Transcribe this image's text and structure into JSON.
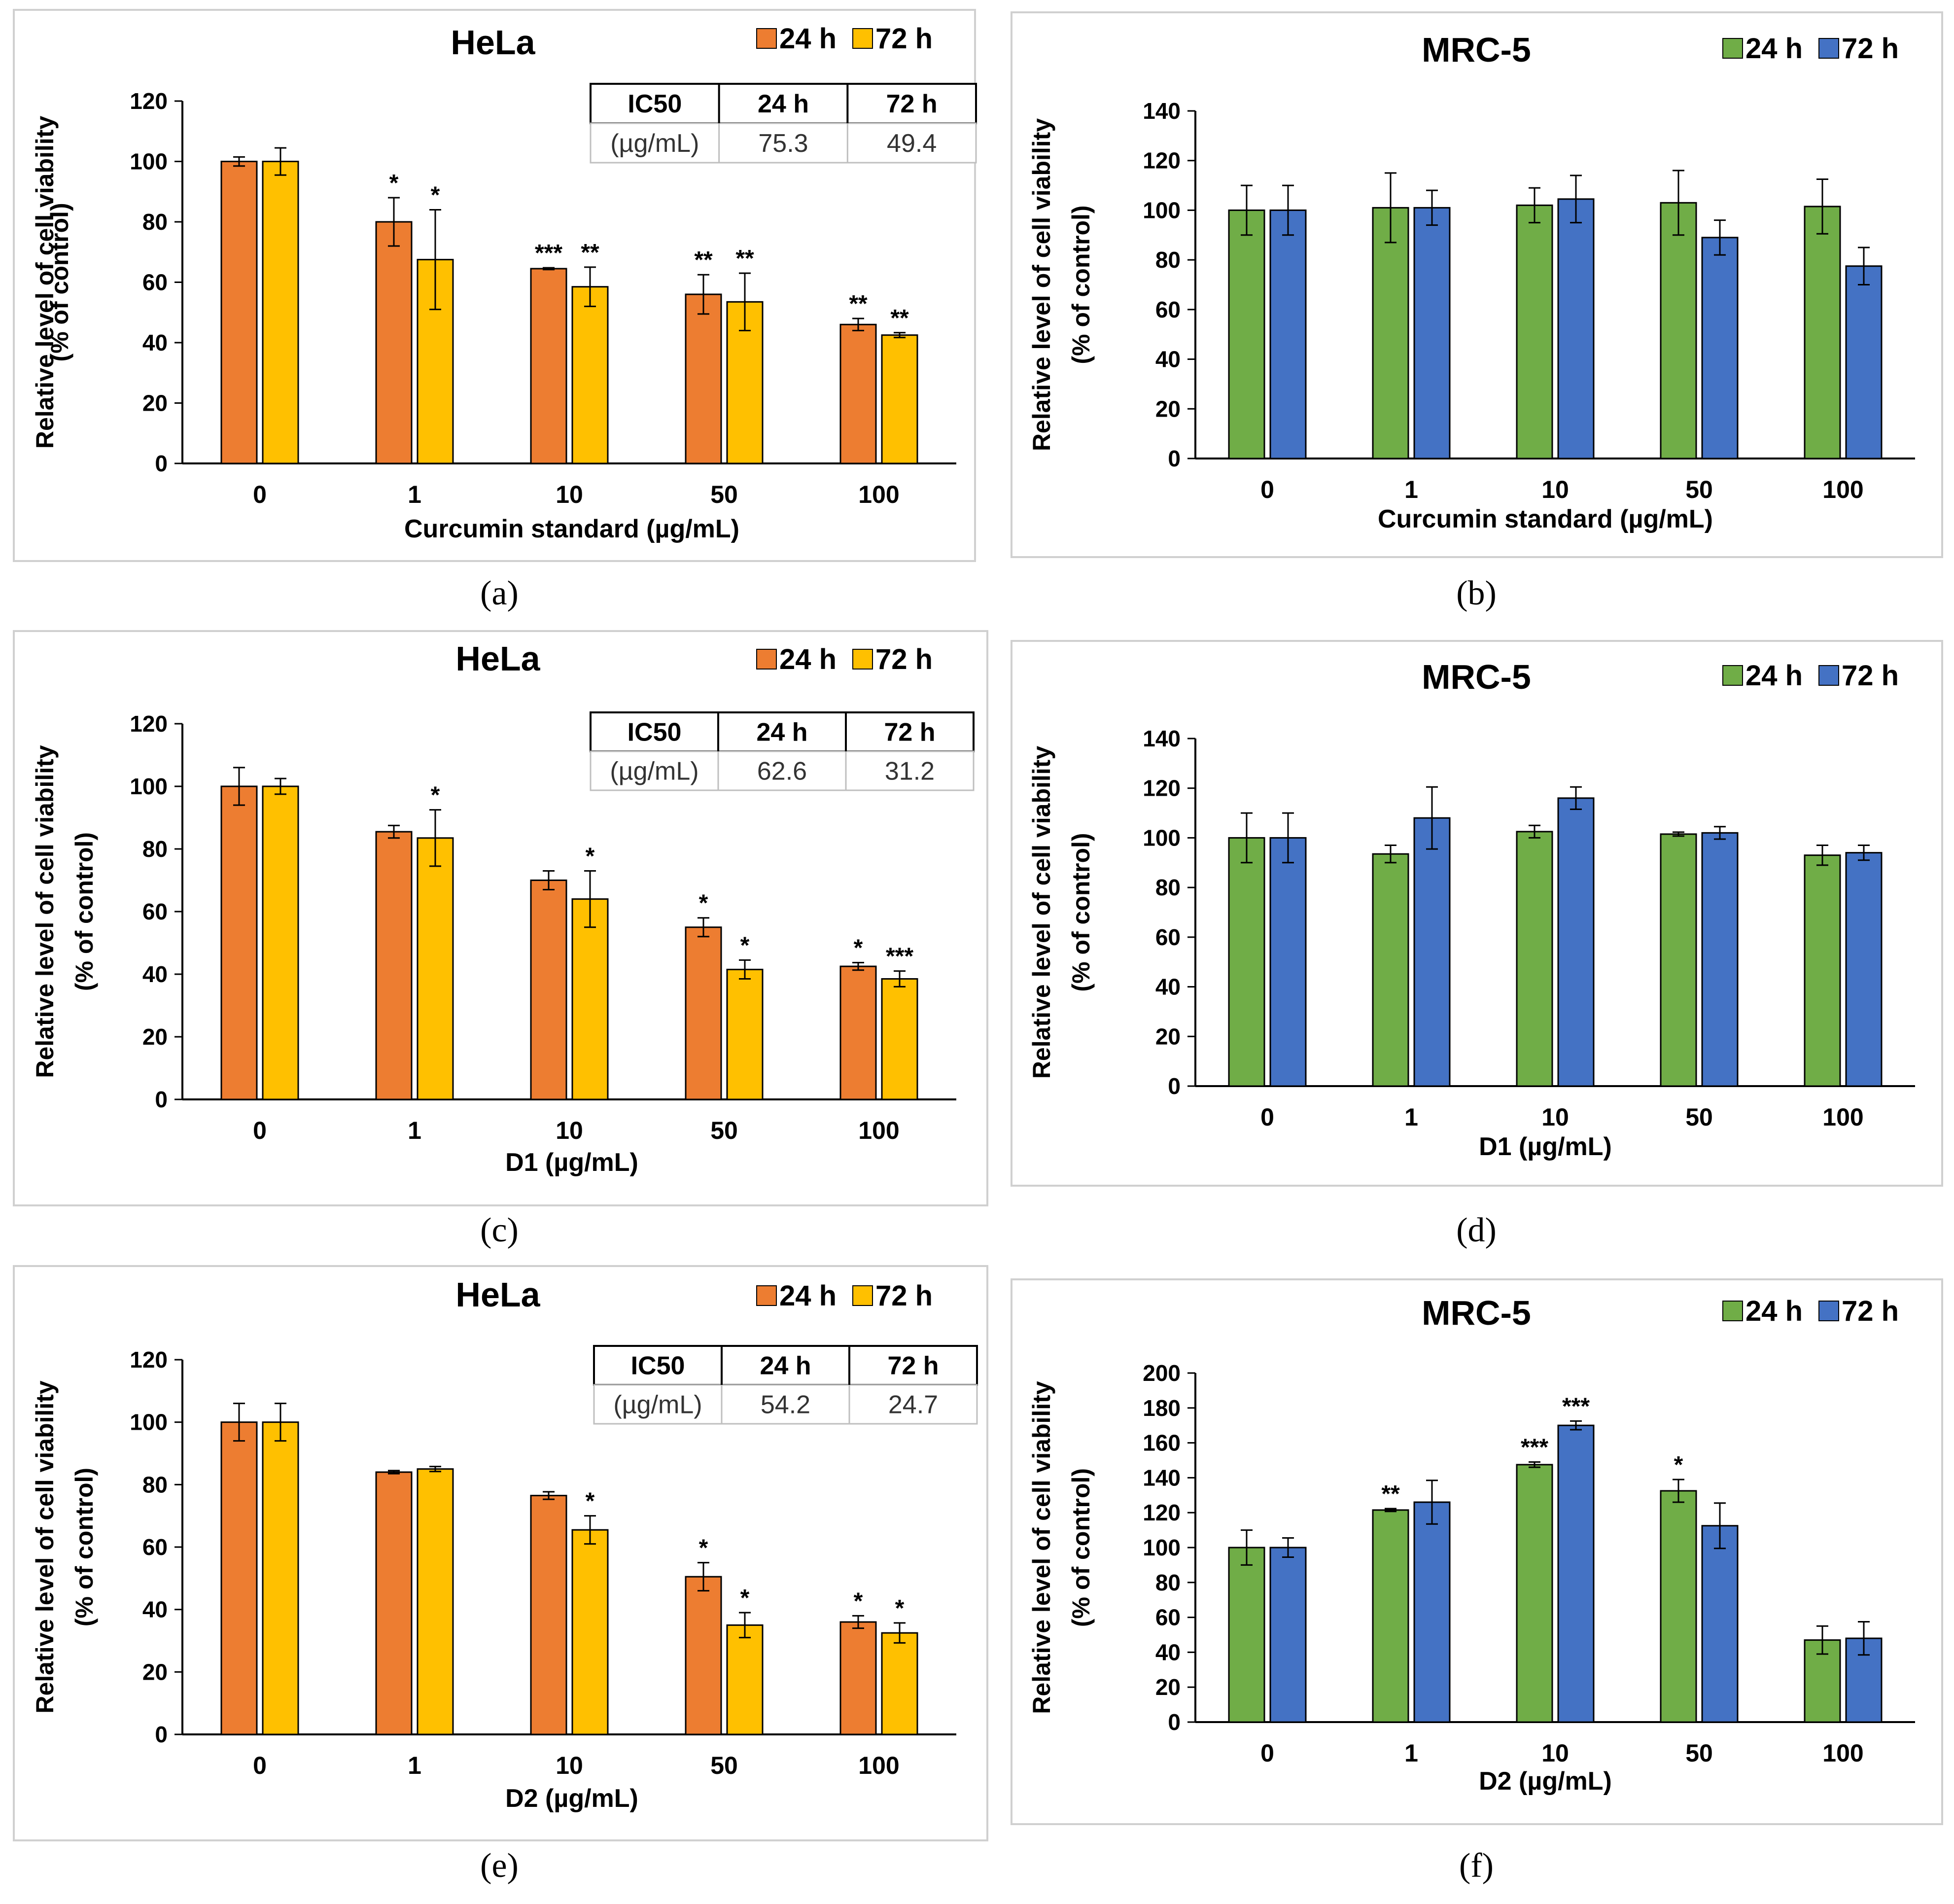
{
  "figure": {
    "colors": {
      "hela_24h": "#ED7D31",
      "hela_72h": "#FFC000",
      "mrc5_24h": "#70AD47",
      "mrc5_72h": "#4472C4",
      "axis": "#000000",
      "panel_border": "#D0D0D0",
      "table_header_border": "#000000",
      "table_body_border": "#BFBFBF"
    }
  },
  "chart_data": [
    {
      "id": "a",
      "type": "bar",
      "caption": "(a)",
      "title": "HeLa",
      "xlabel": "Curcumin standard (µg/mL)",
      "ylabel_line1": "Relative level of cell viability",
      "ylabel_line2": "(% of control)",
      "ylim": [
        0,
        120
      ],
      "yticks": [
        0,
        20,
        40,
        60,
        80,
        100,
        120
      ],
      "categories": [
        "0",
        "1",
        "10",
        "50",
        "100"
      ],
      "series": [
        {
          "name": "24 h",
          "color_key": "hela_24h",
          "values": [
            100,
            80,
            64.5,
            56,
            46
          ],
          "errors": [
            1.5,
            8,
            0.3,
            6.5,
            2
          ],
          "sig": [
            "",
            "*",
            "***",
            "**",
            "**"
          ]
        },
        {
          "name": "72 h",
          "color_key": "hela_72h",
          "values": [
            100,
            67.5,
            58.5,
            53.5,
            42.5
          ],
          "errors": [
            4.5,
            16.5,
            6.5,
            9.5,
            0.8
          ],
          "sig": [
            "",
            "*",
            "**",
            "**",
            "**"
          ]
        }
      ],
      "ic50_table": {
        "header": [
          "IC50",
          "24 h",
          "72 h"
        ],
        "row": [
          "(µg/mL)",
          "75.3",
          "49.4"
        ]
      }
    },
    {
      "id": "b",
      "type": "bar",
      "caption": "(b)",
      "title": "MRC-5",
      "xlabel": "Curcumin standard (µg/mL)",
      "ylabel_line1": "Relative level of cell viability",
      "ylabel_line2": "(% of control)",
      "ylim": [
        0,
        140
      ],
      "yticks": [
        0,
        20,
        40,
        60,
        80,
        100,
        120,
        140
      ],
      "categories": [
        "0",
        "1",
        "10",
        "50",
        "100"
      ],
      "series": [
        {
          "name": "24 h",
          "color_key": "mrc5_24h",
          "values": [
            100,
            101,
            102,
            103,
            101.5
          ],
          "errors": [
            10,
            14,
            7,
            13,
            11
          ],
          "sig": [
            "",
            "",
            "",
            "",
            ""
          ]
        },
        {
          "name": "72 h",
          "color_key": "mrc5_72h",
          "values": [
            100,
            101,
            104.5,
            89,
            77.5
          ],
          "errors": [
            10,
            7,
            9.5,
            7,
            7.5
          ],
          "sig": [
            "",
            "",
            "",
            "",
            ""
          ]
        }
      ]
    },
    {
      "id": "c",
      "type": "bar",
      "caption": "(c)",
      "title": "HeLa",
      "xlabel": "D1 (µg/mL)",
      "ylabel_line1": "Relative level of cell viability",
      "ylabel_line2": "(% of control)",
      "ylim": [
        0,
        120
      ],
      "yticks": [
        0,
        20,
        40,
        60,
        80,
        100,
        120
      ],
      "categories": [
        "0",
        "1",
        "10",
        "50",
        "100"
      ],
      "series": [
        {
          "name": "24 h",
          "color_key": "hela_24h",
          "values": [
            100,
            85.5,
            70,
            55,
            42.5
          ],
          "errors": [
            6,
            2,
            3,
            3,
            1.2
          ],
          "sig": [
            "",
            "",
            "",
            "*",
            "*"
          ]
        },
        {
          "name": "72 h",
          "color_key": "hela_72h",
          "values": [
            100,
            83.5,
            64,
            41.5,
            38.5
          ],
          "errors": [
            2.5,
            9,
            9,
            3,
            2.5
          ],
          "sig": [
            "",
            "*",
            "*",
            "*",
            "***"
          ]
        }
      ],
      "ic50_table": {
        "header": [
          "IC50",
          "24 h",
          "72 h"
        ],
        "row": [
          "(µg/mL)",
          "62.6",
          "31.2"
        ]
      }
    },
    {
      "id": "d",
      "type": "bar",
      "caption": "(d)",
      "title": "MRC-5",
      "xlabel": "D1 (µg/mL)",
      "ylabel_line1": "Relative level of cell viability",
      "ylabel_line2": "(% of control)",
      "ylim": [
        0,
        140
      ],
      "yticks": [
        0,
        20,
        40,
        60,
        80,
        100,
        120,
        140
      ],
      "categories": [
        "0",
        "1",
        "10",
        "50",
        "100"
      ],
      "series": [
        {
          "name": "24 h",
          "color_key": "mrc5_24h",
          "values": [
            100,
            93.5,
            102.5,
            101.5,
            93
          ],
          "errors": [
            10,
            3.5,
            2.5,
            0.8,
            4
          ],
          "sig": [
            "",
            "",
            "",
            "",
            ""
          ]
        },
        {
          "name": "72 h",
          "color_key": "mrc5_72h",
          "values": [
            100,
            108,
            116,
            102,
            94
          ],
          "errors": [
            10,
            12.5,
            4.5,
            2.5,
            3
          ],
          "sig": [
            "",
            "",
            "",
            "",
            ""
          ]
        }
      ]
    },
    {
      "id": "e",
      "type": "bar",
      "caption": "(e)",
      "title": "HeLa",
      "xlabel": "D2 (µg/mL)",
      "ylabel_line1": "Relative level of cell viability",
      "ylabel_line2": "(% of control)",
      "ylim": [
        0,
        120
      ],
      "yticks": [
        0,
        20,
        40,
        60,
        80,
        100,
        120
      ],
      "categories": [
        "0",
        "1",
        "10",
        "50",
        "100"
      ],
      "series": [
        {
          "name": "24 h",
          "color_key": "hela_24h",
          "values": [
            100,
            84,
            76.5,
            50.5,
            36
          ],
          "errors": [
            6,
            0.5,
            1.2,
            4.5,
            2
          ],
          "sig": [
            "",
            "",
            "",
            "*",
            "*"
          ]
        },
        {
          "name": "72 h",
          "color_key": "hela_72h",
          "values": [
            100,
            85,
            65.5,
            35,
            32.5
          ],
          "errors": [
            6,
            0.8,
            4.5,
            4,
            3.2
          ],
          "sig": [
            "",
            "",
            "*",
            "*",
            "*"
          ]
        }
      ],
      "ic50_table": {
        "header": [
          "IC50",
          "24 h",
          "72 h"
        ],
        "row": [
          "(µg/mL)",
          "54.2",
          "24.7"
        ]
      }
    },
    {
      "id": "f",
      "type": "bar",
      "caption": "(f)",
      "title": "MRC-5",
      "xlabel": "D2 (µg/mL)",
      "ylabel_line1": "Relative level of cell viability",
      "ylabel_line2": "(% of control)",
      "ylim": [
        0,
        200
      ],
      "yticks": [
        0,
        20,
        40,
        60,
        80,
        100,
        120,
        140,
        160,
        180,
        200
      ],
      "categories": [
        "0",
        "1",
        "10",
        "50",
        "100"
      ],
      "series": [
        {
          "name": "24 h",
          "color_key": "mrc5_24h",
          "values": [
            100,
            121.5,
            147.5,
            132.5,
            47
          ],
          "errors": [
            10,
            0.8,
            1.5,
            6.5,
            8
          ],
          "sig": [
            "",
            "**",
            "***",
            "*",
            ""
          ]
        },
        {
          "name": "72 h",
          "color_key": "mrc5_72h",
          "values": [
            100,
            126,
            170,
            112.5,
            48
          ],
          "errors": [
            5.5,
            12.5,
            2.5,
            13,
            9.5
          ],
          "sig": [
            "",
            "",
            "***",
            "",
            ""
          ]
        }
      ]
    }
  ]
}
